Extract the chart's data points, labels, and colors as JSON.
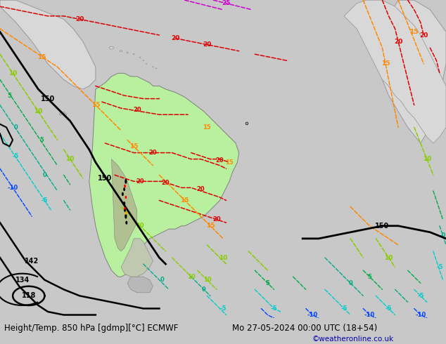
{
  "title_left": "Height/Temp. 850 hPa [gdmp][°C] ECMWF",
  "title_right": "Mo 27-05-2024 00:00 UTC (18+54)",
  "credit": "©weatheronline.co.uk",
  "bg_color": "#c8c8c8",
  "land_green": "#b8f0a0",
  "land_gray": "#e0e0e0",
  "land_dark_gray": "#a8a8a8",
  "fig_width": 6.34,
  "fig_height": 4.9,
  "dpi": 100
}
